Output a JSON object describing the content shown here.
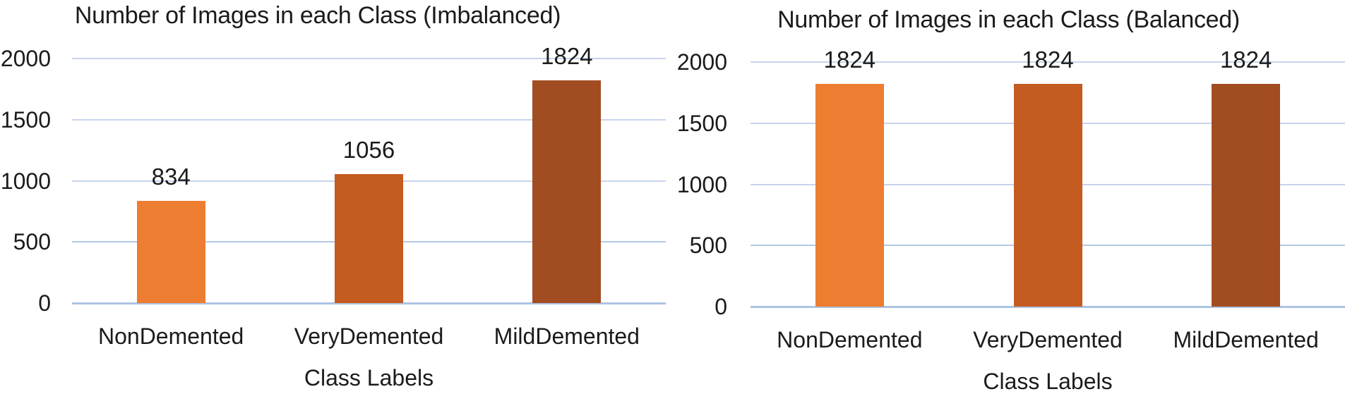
{
  "figure": {
    "background": "#ffffff"
  },
  "chart_data": [
    {
      "type": "bar",
      "title": "Number of Images in each Class (Imbalanced)",
      "xlabel": "Class Labels",
      "ylabel": "",
      "categories": [
        "NonDemented",
        "VeryDemented",
        "MildDemented"
      ],
      "values": [
        834,
        1056,
        1824
      ],
      "bar_colors": [
        "#ED7D31",
        "#C45B20",
        "#A24C21"
      ],
      "yticks": [
        0,
        500,
        1000,
        1500,
        2000
      ],
      "ylim": [
        0,
        2000
      ],
      "grid": "horizontal",
      "legend": "none",
      "gridline_color": "#C6D4EC",
      "mid_gridline_color": "#B5C8E8",
      "baseline_color": "#AEC3E4",
      "text_color": "#1B1B1B"
    },
    {
      "type": "bar",
      "title": "Number of Images in each Class (Balanced)",
      "xlabel": "Class Labels",
      "ylabel": "",
      "categories": [
        "NonDemented",
        "VeryDemented",
        "MildDemented"
      ],
      "values": [
        1824,
        1824,
        1824
      ],
      "bar_colors": [
        "#ED7D31",
        "#C45B20",
        "#A24C21"
      ],
      "yticks": [
        0,
        500,
        1000,
        1500,
        2000
      ],
      "ylim": [
        0,
        2000
      ],
      "grid": "horizontal",
      "legend": "none",
      "gridline_color": "#C6D4EC",
      "mid_gridline_color": "#B5C8E8",
      "baseline_color": "#AEC3E4",
      "text_color": "#1B1B1B"
    }
  ]
}
